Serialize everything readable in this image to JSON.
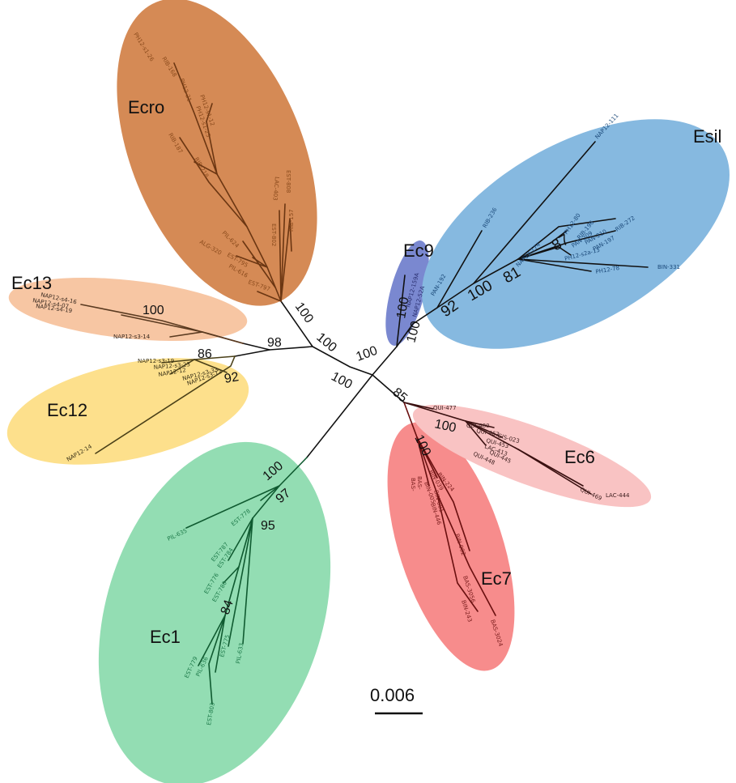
{
  "clades": [
    {
      "name": "Ecro",
      "color": "#d58a55",
      "tip_color": "#8a4a1c"
    },
    {
      "name": "Ec13",
      "color": "#f7c6a3",
      "tip_color": "#3a2a20"
    },
    {
      "name": "Ec12",
      "color": "#fde08c",
      "tip_color": "#3a3218"
    },
    {
      "name": "Ec1",
      "color": "#93ddb3",
      "tip_color": "#1e7a4a"
    },
    {
      "name": "Ec7",
      "color": "#f78c8c",
      "tip_color": "#7a1c1c"
    },
    {
      "name": "Ec6",
      "color": "#f9c3c3",
      "tip_color": "#3a1c1c"
    },
    {
      "name": "Ec9",
      "color": "#7a88d0",
      "tip_color": "#2a2f70"
    },
    {
      "name": "Esil",
      "color": "#86b9e0",
      "tip_color": "#1c4a7a"
    }
  ],
  "bootstrap": {
    "ecro_root": "100",
    "ecro_stem": "100",
    "ec13": "100",
    "ec13_ec12": "98",
    "ec12_a": "86",
    "ec12_b": "92",
    "inner_a": "100",
    "inner_b": "100",
    "ec9": "100",
    "ec9_esil": "100",
    "esil_a": "92",
    "esil_b": "100",
    "esil_c": "81",
    "esil_d": "87",
    "ec67": "85",
    "ec6": "100",
    "ec7": "100",
    "ec1_a": "100",
    "ec1_b": "97",
    "ec1_c": "95",
    "ec1_d": "84"
  },
  "tips": {
    "ecro": [
      "PH12-s1-26",
      "RIB-168",
      "PH12-21",
      "PH12-s1-12",
      "PH12-s1-23",
      "RIB-187",
      "RIB-218",
      "EST-808",
      "LAC-403",
      "EST-802",
      "RIB-157",
      "PIL-624",
      "ALG-320",
      "EST-795",
      "PIL-616",
      "EST-797"
    ],
    "ec13": [
      "NAP12-s4-16",
      "NAP12-s4-07",
      "NAP12-s4-19",
      "NAP12-s3-14"
    ],
    "ec12": [
      "NAP12-s3-19",
      "NAP12-s3-23",
      "NAP12-12",
      "NAP12-s3-33",
      "NAP12-s3-12",
      "NAP12-14"
    ],
    "ec1": [
      "PIL-635",
      "EST-778",
      "EST-787",
      "EST-784",
      "EST-776",
      "EST-780",
      "EST-779",
      "PIL-636",
      "EST-775",
      "PIL-633",
      "EST-803"
    ],
    "ec7": [
      "BAS-",
      "BAS-",
      "BIN-039",
      "BIN-224",
      "BIN-005",
      "BIN-001",
      "BIN-446",
      "BIN-002",
      "BAS-3056",
      "BIN-243",
      "BAS-3024"
    ],
    "ec6": [
      "QUI-477",
      "QUI-480",
      "QUI-467",
      "GIS-023",
      "QUI-453",
      "LAC-413",
      "QUI-448",
      "QUI-445",
      "LAC-444",
      "QUI-469"
    ],
    "ec9": [
      "NAP12-159A",
      "NAP12-52A"
    ],
    "esil": [
      "NAP12-111",
      "RIB-236",
      "PAN-192",
      "NAP12-174",
      "PH12-80",
      "RIB-196",
      "PAN-209",
      "PAN-210",
      "RIB-272",
      "PAN-197",
      "PH12-s2a-13",
      "PH12-78",
      "BIN-331"
    ]
  },
  "scale_bar": {
    "label": "0.006"
  }
}
